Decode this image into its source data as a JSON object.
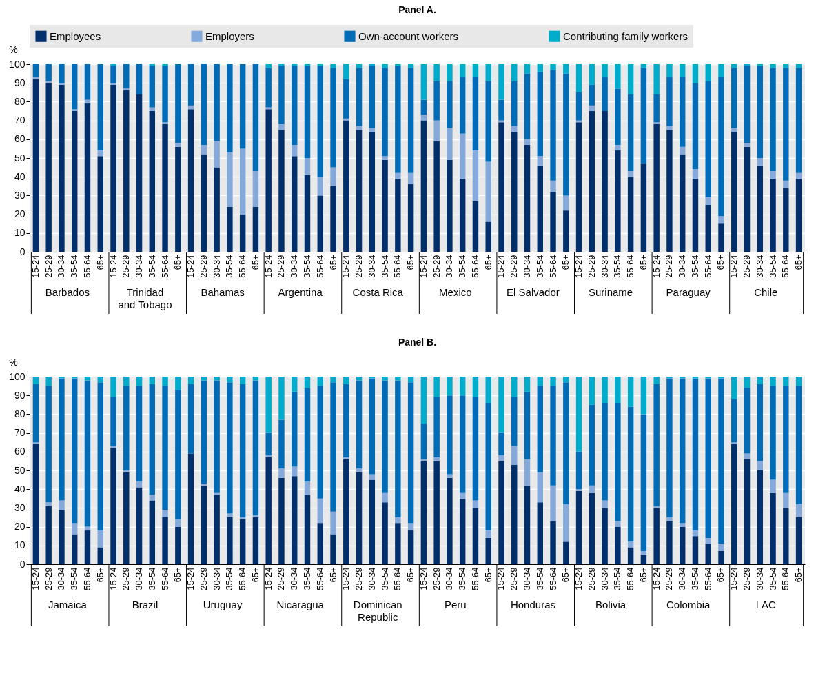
{
  "chart_data": [
    {
      "type": "bar",
      "title": "Panel A.",
      "ylabel": "%",
      "stacked": true,
      "grid": "y",
      "legend": "top",
      "ylim": [
        0,
        100
      ],
      "yticks": [
        0,
        10,
        20,
        30,
        40,
        50,
        60,
        70,
        80,
        90,
        100
      ],
      "categories": [
        "15-24",
        "25-29",
        "30-34",
        "35-54",
        "55-64",
        "65+",
        "15-24",
        "25-29",
        "30-34",
        "35-54",
        "55-64",
        "65+",
        "15-24",
        "25-29",
        "30-34",
        "35-54",
        "55-64",
        "65+",
        "15-24",
        "25-29",
        "30-34",
        "35-54",
        "55-64",
        "65+",
        "15-24",
        "25-29",
        "30-34",
        "35-54",
        "55-64",
        "65+",
        "15-24",
        "25-29",
        "30-34",
        "35-54",
        "55-64",
        "65+",
        "15-24",
        "25-29",
        "30-34",
        "35-54",
        "55-64",
        "65+",
        "15-24",
        "25-29",
        "30-34",
        "35-54",
        "55-64",
        "65+",
        "15-24",
        "25-29",
        "30-34",
        "35-54",
        "55-64",
        "65+",
        "15-24",
        "25-29",
        "30-34",
        "35-54",
        "55-64",
        "65+"
      ],
      "annotations": [
        "Barbados",
        "Trinidad and Tobago",
        "Bahamas",
        "Argentina",
        "Costa Rica",
        "Mexico",
        "El Salvador",
        "Suriname",
        "Paraguay",
        "Chile"
      ],
      "series": [
        {
          "name": "Employees",
          "color": "#002f6c",
          "values": [
            92,
            90,
            89,
            75,
            79,
            51,
            89,
            86,
            84,
            75,
            68,
            56,
            76,
            52,
            45,
            24,
            20,
            24,
            76,
            65,
            51,
            41,
            30,
            35,
            70,
            65,
            64,
            49,
            39,
            36,
            70,
            59,
            49,
            39,
            27,
            16,
            69,
            64,
            57,
            46,
            32,
            22,
            69,
            75,
            75,
            54,
            40,
            47,
            68,
            65,
            52,
            39,
            25,
            15,
            64,
            56,
            46,
            39,
            34,
            39
          ]
        },
        {
          "name": "Employers",
          "color": "#84a9da",
          "values": [
            1,
            1,
            1,
            1,
            2,
            3,
            1,
            1,
            0,
            2,
            1,
            2,
            2,
            5,
            14,
            29,
            35,
            19,
            1,
            3,
            6,
            9,
            10,
            10,
            1,
            2,
            2,
            2,
            3,
            6,
            3,
            11,
            17,
            24,
            27,
            32,
            1,
            3,
            3,
            5,
            6,
            8,
            1,
            3,
            0,
            3,
            3,
            0,
            1,
            2,
            4,
            5,
            4,
            4,
            2,
            2,
            4,
            4,
            4,
            3
          ]
        },
        {
          "name": "Own-account workers",
          "color": "#006bb6",
          "values": [
            7,
            9,
            10,
            24,
            19,
            46,
            9,
            13,
            16,
            22,
            30,
            42,
            22,
            43,
            41,
            47,
            45,
            57,
            21,
            31,
            42,
            49,
            59,
            53,
            21,
            31,
            33,
            47,
            57,
            56,
            8,
            21,
            25,
            30,
            39,
            43,
            11,
            24,
            35,
            45,
            59,
            65,
            15,
            11,
            18,
            30,
            41,
            51,
            15,
            26,
            37,
            46,
            62,
            74,
            32,
            41,
            49,
            55,
            60,
            56
          ]
        },
        {
          "name": "Contributing family workers",
          "color": "#00accc",
          "values": [
            0,
            0,
            0,
            0,
            0,
            0,
            1,
            0,
            0,
            1,
            1,
            0,
            0,
            0,
            0,
            0,
            0,
            0,
            2,
            1,
            1,
            1,
            1,
            2,
            8,
            2,
            1,
            2,
            1,
            2,
            19,
            9,
            9,
            7,
            7,
            9,
            19,
            9,
            5,
            4,
            3,
            5,
            15,
            11,
            7,
            13,
            16,
            2,
            16,
            7,
            7,
            10,
            9,
            7,
            2,
            1,
            1,
            2,
            2,
            2
          ]
        }
      ]
    },
    {
      "type": "bar",
      "title": "Panel B.",
      "ylabel": "%",
      "stacked": true,
      "grid": "y",
      "ylim": [
        0,
        100
      ],
      "yticks": [
        0,
        10,
        20,
        30,
        40,
        50,
        60,
        70,
        80,
        90,
        100
      ],
      "categories": [
        "15-24",
        "25-29",
        "30-34",
        "35-54",
        "55-64",
        "65+",
        "15-24",
        "25-29",
        "30-34",
        "35-54",
        "55-64",
        "65+",
        "15-24",
        "25-29",
        "30-34",
        "35-54",
        "55-64",
        "65+",
        "15-24",
        "25-29",
        "30-34",
        "35-54",
        "55-64",
        "65+",
        "15-24",
        "25-29",
        "30-34",
        "35-54",
        "55-64",
        "65+",
        "15-24",
        "25-29",
        "30-34",
        "35-54",
        "55-64",
        "65+",
        "15-24",
        "25-29",
        "30-34",
        "35-54",
        "55-64",
        "65+",
        "15-24",
        "25-29",
        "30-34",
        "35-54",
        "55-64",
        "65+",
        "15-24",
        "25-29",
        "30-34",
        "35-54",
        "55-64",
        "65+",
        "15-24",
        "25-29",
        "30-34",
        "35-54",
        "55-64",
        "65+"
      ],
      "annotations": [
        "Jamaica",
        "Brazil",
        "Uruguay",
        "Nicaragua",
        "Dominican Republic",
        "Peru",
        "Honduras",
        "Bolivia",
        "Colombia",
        "LAC"
      ],
      "series": [
        {
          "color": "#002f6c",
          "values": [
            64,
            31,
            29,
            16,
            18,
            9,
            62,
            49,
            41,
            34,
            25,
            20,
            59,
            42,
            37,
            25,
            24,
            25,
            57,
            46,
            47,
            37,
            22,
            16,
            56,
            49,
            45,
            33,
            22,
            18,
            55,
            55,
            46,
            35,
            30,
            14,
            55,
            53,
            42,
            33,
            23,
            12,
            39,
            38,
            30,
            20,
            9,
            5,
            30,
            23,
            20,
            15,
            11,
            7,
            64,
            56,
            50,
            38,
            30,
            25
          ]
        },
        {
          "color": "#84a9da",
          "values": [
            1,
            2,
            5,
            6,
            2,
            9,
            1,
            1,
            3,
            3,
            4,
            4,
            0,
            1,
            1,
            2,
            1,
            1,
            1,
            5,
            5,
            7,
            13,
            12,
            1,
            2,
            3,
            5,
            3,
            4,
            1,
            2,
            2,
            3,
            4,
            4,
            3,
            10,
            14,
            16,
            19,
            20,
            1,
            4,
            4,
            3,
            3,
            2,
            1,
            2,
            2,
            3,
            3,
            4,
            1,
            3,
            5,
            7,
            8,
            7
          ]
        },
        {
          "color": "#006bb6",
          "values": [
            31,
            62,
            65,
            77,
            78,
            79,
            26,
            45,
            51,
            59,
            66,
            69,
            37,
            55,
            60,
            70,
            71,
            72,
            12,
            26,
            40,
            50,
            60,
            69,
            39,
            47,
            51,
            60,
            73,
            75,
            19,
            32,
            42,
            52,
            55,
            68,
            12,
            26,
            36,
            46,
            53,
            65,
            20,
            43,
            52,
            63,
            72,
            73,
            65,
            74,
            77,
            81,
            85,
            88,
            23,
            35,
            41,
            50,
            57,
            63
          ]
        },
        {
          "color": "#00accc",
          "values": [
            4,
            5,
            1,
            1,
            2,
            3,
            11,
            5,
            5,
            4,
            5,
            7,
            4,
            2,
            2,
            3,
            4,
            2,
            30,
            23,
            8,
            6,
            5,
            3,
            4,
            2,
            1,
            2,
            2,
            3,
            25,
            11,
            10,
            10,
            11,
            14,
            30,
            11,
            8,
            5,
            5,
            3,
            40,
            15,
            14,
            14,
            16,
            20,
            4,
            1,
            1,
            1,
            1,
            1,
            12,
            6,
            4,
            5,
            5,
            5
          ]
        }
      ]
    }
  ]
}
